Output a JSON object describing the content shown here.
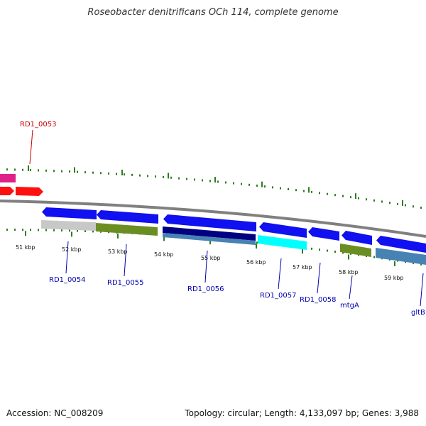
{
  "title": "Roseobacter denitrificans OCh 114, complete genome",
  "footer": {
    "accession": "Accession: NC_008209",
    "summary": "Topology: circular; Length: 4,133,097 bp; Genes: 3,988"
  },
  "colors": {
    "backbone": "#808080",
    "ticks": "#2e7d1e",
    "label_top": "#cc0000",
    "label_bottom": "#0000b0"
  },
  "tick_labels": [
    "51 kbp",
    "52 kbp",
    "53 kbp",
    "54 kbp",
    "55 kbp",
    "56 kbp",
    "57 kbp",
    "58 kbp",
    "59 kbp"
  ],
  "genes_top": [
    {
      "label": "RD1_0053",
      "color": "#cc0000"
    }
  ],
  "genes_bottom": [
    {
      "label": "RD1_0054",
      "color": "#0000b0"
    },
    {
      "label": "RD1_0055",
      "color": "#0000b0"
    },
    {
      "label": "RD1_0056",
      "color": "#0000b0"
    },
    {
      "label": "RD1_0057",
      "color": "#0000b0"
    },
    {
      "label": "RD1_0058",
      "color": "#0000b0"
    },
    {
      "label": "mtgA",
      "color": "#0000b0"
    },
    {
      "label": "gltB",
      "color": "#0000b0"
    }
  ]
}
